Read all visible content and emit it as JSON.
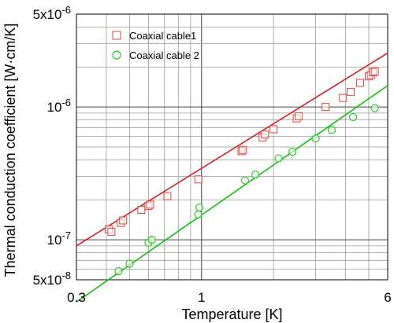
{
  "chart_data": {
    "type": "scatter",
    "title": "",
    "xlabel": "Temperature [K]",
    "ylabel": "Thermal conduction coefficient [W·cm/K]",
    "x_scale": "log",
    "y_scale": "log",
    "xlim": [
      0.3,
      6
    ],
    "ylim": [
      5e-08,
      5e-06
    ],
    "grid": true,
    "legend_position": "top-left",
    "x_tick_labels": [
      {
        "value": 0.3,
        "label": "0.3"
      },
      {
        "value": 1,
        "label": "1"
      },
      {
        "value": 6,
        "label": "6"
      }
    ],
    "y_tick_labels": [
      {
        "value": 5e-06,
        "mantissa": "5x10",
        "exp": "-6"
      },
      {
        "value": 1e-06,
        "mantissa": "10",
        "exp": "-6"
      },
      {
        "value": 1e-07,
        "mantissa": "10",
        "exp": "-7"
      },
      {
        "value": 5e-08,
        "mantissa": "5x10",
        "exp": "-8"
      }
    ],
    "series": [
      {
        "name": "Coaxial cable1",
        "marker": "square",
        "color": "#e0443a",
        "fit_color": "#d22020",
        "fit_line": {
          "x": [
            0.3,
            6
          ],
          "y": [
            9e-08,
            2.55e-06
          ]
        },
        "x": [
          0.41,
          0.42,
          0.46,
          0.47,
          0.56,
          0.6,
          0.61,
          0.72,
          0.97,
          1.47,
          1.49,
          1.8,
          1.84,
          2.0,
          2.5,
          2.55,
          3.3,
          3.9,
          4.2,
          4.6,
          5.0,
          5.1,
          5.2,
          5.3
        ],
        "y": [
          1.2e-07,
          1.15e-07,
          1.34e-07,
          1.4e-07,
          1.68e-07,
          1.8e-07,
          1.84e-07,
          2.13e-07,
          2.85e-07,
          4.65e-07,
          4.75e-07,
          5.9e-07,
          6.2e-07,
          6.8e-07,
          8.2e-07,
          8.5e-07,
          1e-06,
          1.17e-06,
          1.3e-06,
          1.52e-06,
          1.7e-06,
          1.74e-06,
          1.82e-06,
          1.85e-06
        ]
      },
      {
        "name": "Coaxial cable 2",
        "marker": "circle",
        "color": "#22cc22",
        "fit_color": "#10c010",
        "fit_line": {
          "x": [
            0.3,
            6
          ],
          "y": [
            3.4e-08,
            1.45e-06
          ]
        },
        "x": [
          0.45,
          0.5,
          0.6,
          0.62,
          0.97,
          0.98,
          1.52,
          1.68,
          2.1,
          2.4,
          3.0,
          3.5,
          4.3,
          5.3
        ],
        "y": [
          5.8e-08,
          6.6e-08,
          9.5e-08,
          1e-07,
          1.55e-07,
          1.75e-07,
          2.8e-07,
          3.1e-07,
          4.1e-07,
          4.6e-07,
          5.8e-07,
          6.7e-07,
          8.4e-07,
          9.8e-07
        ]
      }
    ]
  }
}
